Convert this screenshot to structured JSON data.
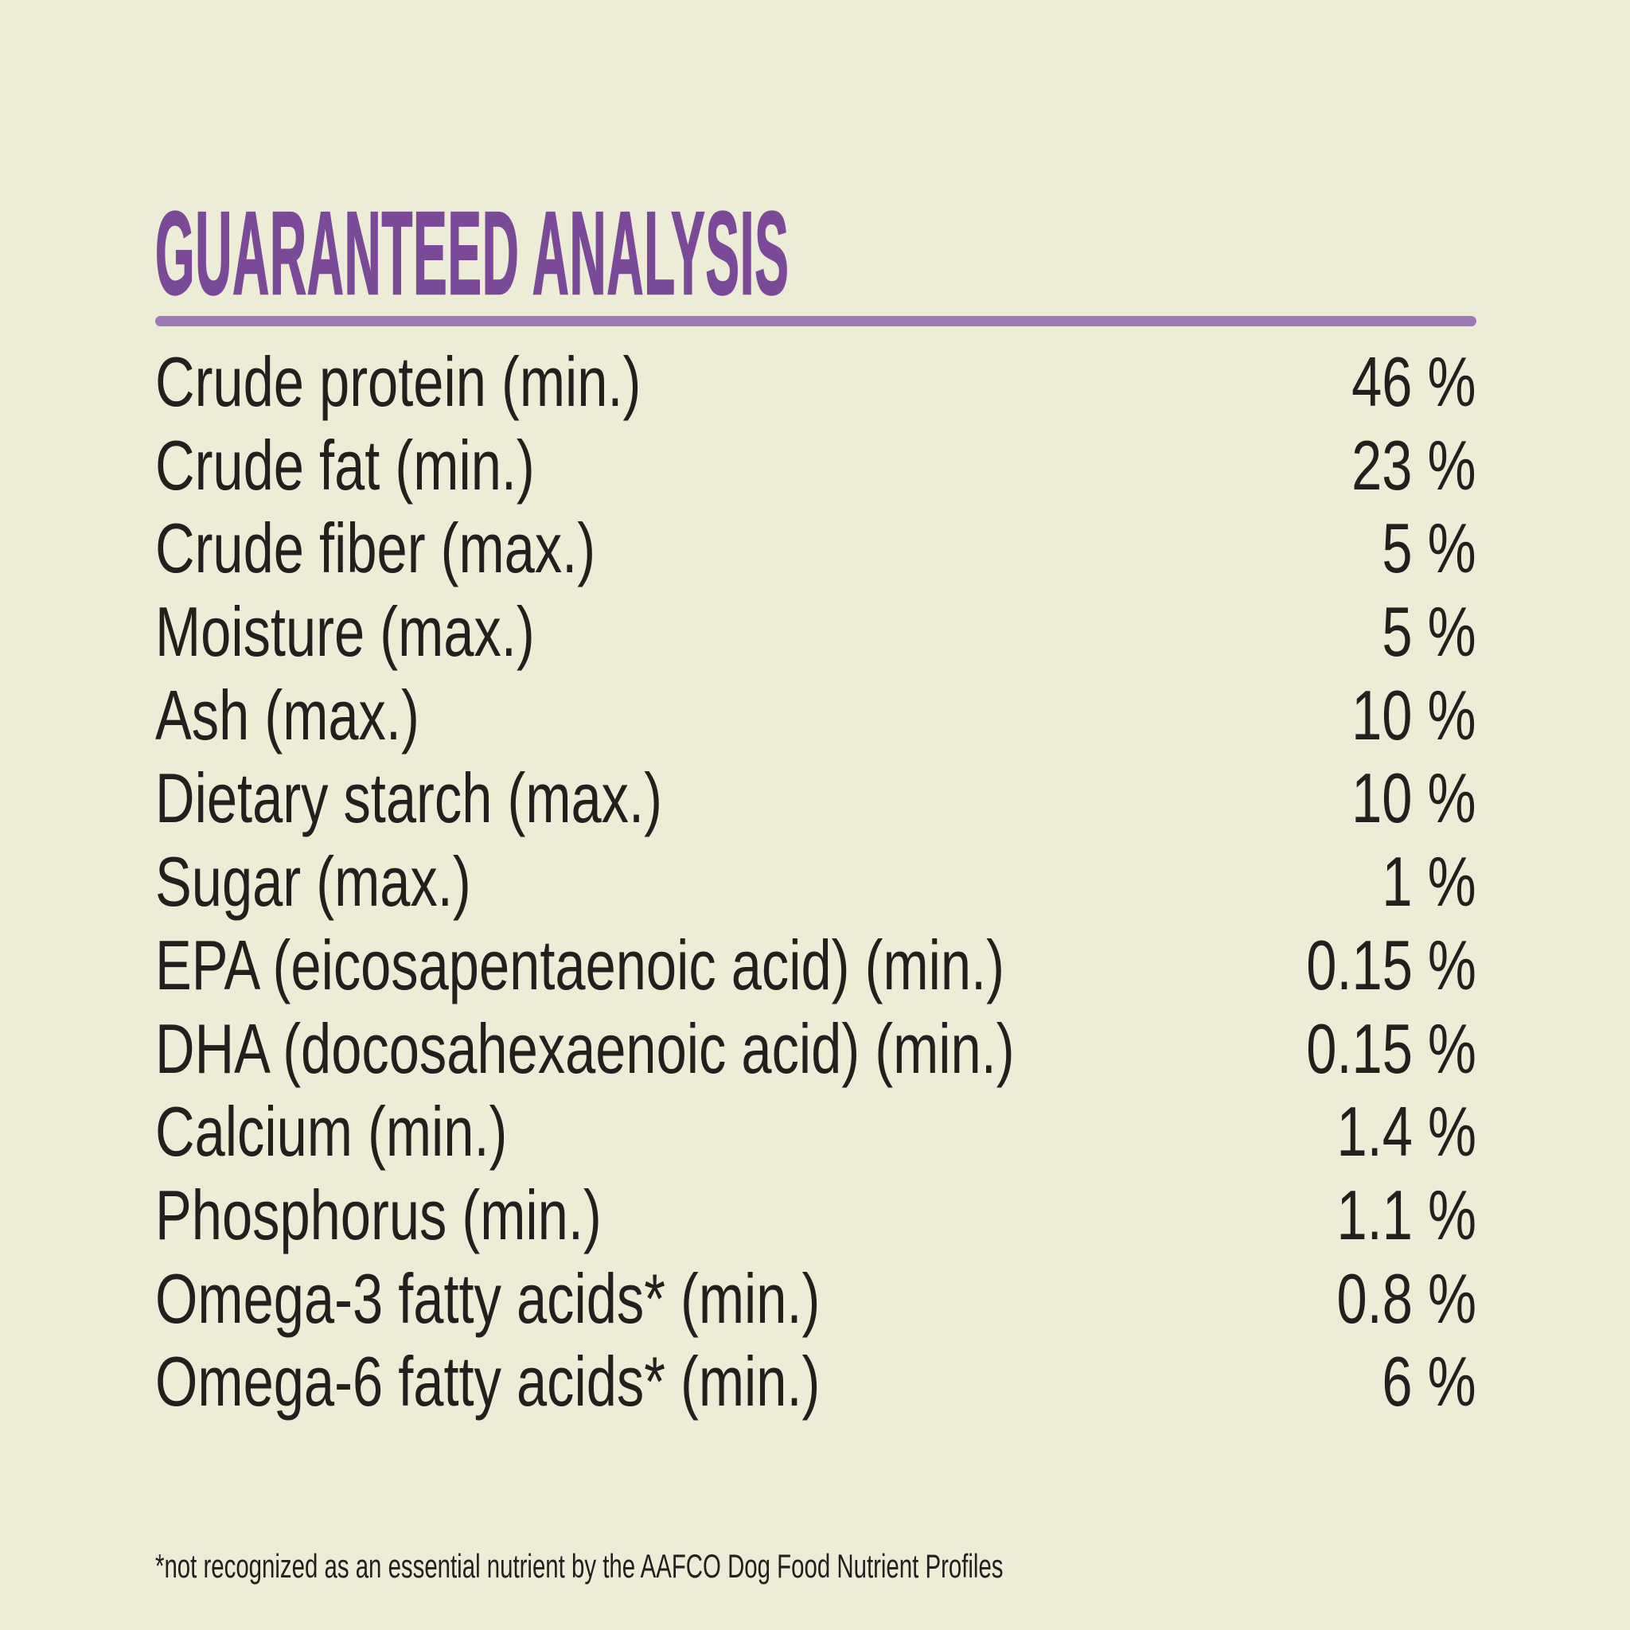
{
  "panel": {
    "title": "GUARANTEED ANALYSIS",
    "footnote": "*not recognized as an essential nutrient by the AAFCO Dog Food Nutrient Profiles",
    "colors": {
      "background": "#edecd6",
      "title": "#7a4a99",
      "underline": "#9d79b8",
      "text": "#21201d"
    }
  },
  "table": {
    "rows": [
      {
        "label": "Crude protein (min.)",
        "value": "46 %"
      },
      {
        "label": "Crude fat (min.)",
        "value": "23 %"
      },
      {
        "label": "Crude fiber (max.)",
        "value": "5 %"
      },
      {
        "label": "Moisture (max.)",
        "value": "5 %"
      },
      {
        "label": "Ash (max.)",
        "value": "10 %"
      },
      {
        "label": "Dietary starch (max.)",
        "value": "10 %"
      },
      {
        "label": "Sugar (max.)",
        "value": "1 %"
      },
      {
        "label": "EPA (eicosapentaenoic acid) (min.)",
        "value": "0.15 %"
      },
      {
        "label": "DHA (docosahexaenoic acid) (min.)",
        "value": "0.15 %"
      },
      {
        "label": "Calcium (min.)",
        "value": "1.4 %"
      },
      {
        "label": "Phosphorus (min.)",
        "value": "1.1 %"
      },
      {
        "label": "Omega-3 fatty acids* (min.)",
        "value": "0.8 %"
      },
      {
        "label": "Omega-6 fatty acids* (min.)",
        "value": "6 %"
      }
    ]
  }
}
